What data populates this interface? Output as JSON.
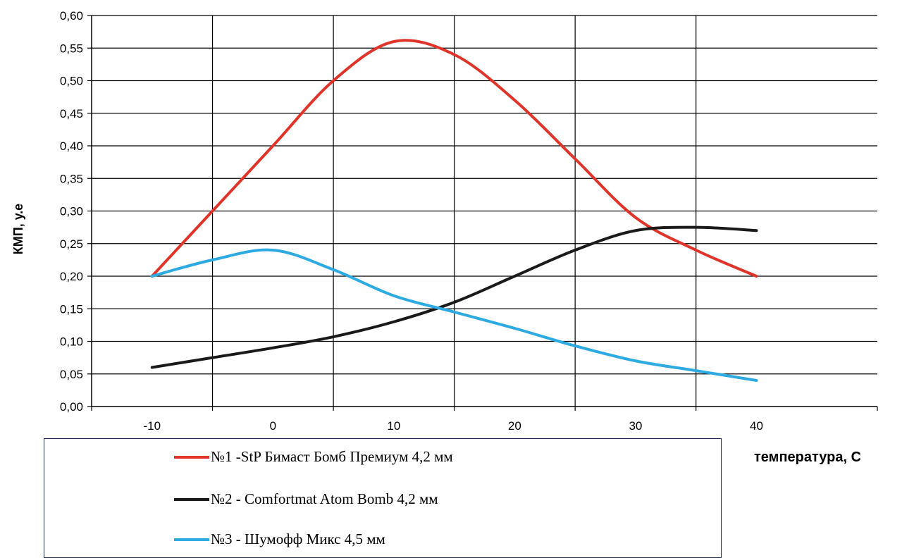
{
  "chart_data": {
    "type": "line",
    "title": "",
    "xlabel": "температура,  С",
    "ylabel": "КМП, у.е",
    "xlim": [
      -15,
      50
    ],
    "ylim": [
      0,
      0.6
    ],
    "x_ticks": [
      -10,
      0,
      10,
      20,
      30,
      40
    ],
    "x_tick_labels": [
      "-10",
      "0",
      "10",
      "20",
      "30",
      "40"
    ],
    "y_ticks": [
      0,
      0.05,
      0.1,
      0.15,
      0.2,
      0.25,
      0.3,
      0.35,
      0.4,
      0.45,
      0.5,
      0.55,
      0.6
    ],
    "y_tick_labels": [
      "0,00",
      "0,05",
      "0,10",
      "0,15",
      "0,20",
      "0,25",
      "0,30",
      "0,35",
      "0,40",
      "0,45",
      "0,50",
      "0,55",
      "0,60"
    ],
    "grid": true,
    "legend_position": "bottom",
    "series": [
      {
        "name": "№1 -StP Бимаст Бомб Премиум  4,2 мм",
        "color": "#e0342a",
        "x": [
          -10,
          -5,
          0,
          5,
          10,
          15,
          20,
          25,
          30,
          35,
          40
        ],
        "values": [
          0.2,
          0.3,
          0.4,
          0.5,
          0.56,
          0.54,
          0.47,
          0.38,
          0.29,
          0.24,
          0.2
        ]
      },
      {
        "name": "№2 - Comfortmat Atom Bomb 4,2 мм",
        "color": "#1a1a1a",
        "x": [
          -10,
          -5,
          0,
          5,
          10,
          15,
          20,
          25,
          30,
          35,
          40
        ],
        "values": [
          0.06,
          0.075,
          0.09,
          0.107,
          0.13,
          0.16,
          0.2,
          0.24,
          0.27,
          0.275,
          0.27
        ]
      },
      {
        "name": "№3 - Шумофф Микс  4,5 мм",
        "color": "#2eaae3",
        "x": [
          -10,
          -5,
          0,
          5,
          10,
          15,
          20,
          25,
          30,
          35,
          40
        ],
        "values": [
          0.2,
          0.225,
          0.24,
          0.21,
          0.17,
          0.145,
          0.12,
          0.093,
          0.07,
          0.055,
          0.04
        ]
      }
    ]
  }
}
